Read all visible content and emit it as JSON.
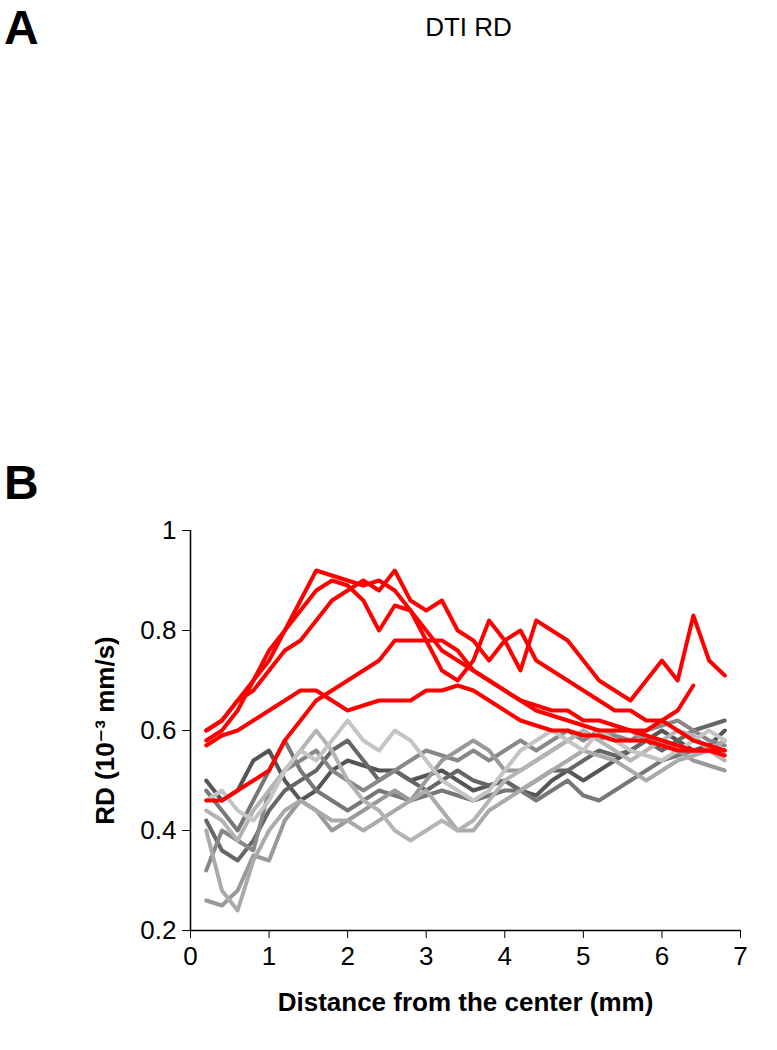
{
  "figure": {
    "panels": [
      {
        "label": "A",
        "title": "DTI RD"
      },
      {
        "label": "B"
      }
    ]
  },
  "chart_data": {
    "type": "line",
    "xlabel": "Distance from the center (mm)",
    "ylabel": "RD (10⁻³ mm/s)",
    "xlim": [
      0,
      7
    ],
    "ylim": [
      0.2,
      1
    ],
    "xticks": [
      0,
      1,
      2,
      3,
      4,
      5,
      6,
      7
    ],
    "yticks": [
      0.2,
      0.4,
      0.6,
      0.8,
      1
    ],
    "x": [
      0.2,
      0.4,
      0.6,
      0.8,
      1.0,
      1.2,
      1.4,
      1.6,
      1.8,
      2.0,
      2.2,
      2.4,
      2.6,
      2.8,
      3.0,
      3.2,
      3.4,
      3.6,
      3.8,
      4.0,
      4.2,
      4.4,
      4.6,
      4.8,
      5.0,
      5.2,
      5.4,
      5.6,
      5.8,
      6.0,
      6.2,
      6.4,
      6.6,
      6.8
    ],
    "series": [
      {
        "color": "#555555",
        "values": [
          0.5,
          0.46,
          0.48,
          0.54,
          0.56,
          0.5,
          0.46,
          0.48,
          0.52,
          0.54,
          0.53,
          0.52,
          0.52,
          0.5,
          0.51,
          0.52,
          0.5,
          0.48,
          0.49,
          0.5,
          0.48,
          0.47,
          0.5,
          0.52,
          0.5,
          0.52,
          0.54,
          0.56,
          0.58,
          0.6,
          0.58,
          0.56,
          0.57,
          0.6
        ]
      },
      {
        "color": "#666666",
        "values": [
          0.42,
          0.36,
          0.34,
          0.38,
          0.44,
          0.48,
          0.5,
          0.52,
          0.56,
          0.58,
          0.54,
          0.5,
          0.52,
          0.5,
          0.48,
          0.5,
          0.52,
          0.5,
          0.49,
          0.5,
          0.48,
          0.5,
          0.52,
          0.52,
          0.54,
          0.56,
          0.55,
          0.56,
          0.58,
          0.56,
          0.58,
          0.6,
          0.61,
          0.62
        ]
      },
      {
        "color": "#777777",
        "values": [
          0.48,
          0.44,
          0.4,
          0.46,
          0.52,
          0.58,
          0.52,
          0.48,
          0.46,
          0.44,
          0.46,
          0.48,
          0.47,
          0.46,
          0.47,
          0.48,
          0.47,
          0.46,
          0.47,
          0.48,
          0.48,
          0.46,
          0.48,
          0.5,
          0.47,
          0.46,
          0.48,
          0.5,
          0.52,
          0.54,
          0.55,
          0.56,
          0.56,
          0.58
        ]
      },
      {
        "color": "#888888",
        "values": [
          0.32,
          0.4,
          0.38,
          0.36,
          0.48,
          0.52,
          0.54,
          0.56,
          0.52,
          0.5,
          0.48,
          0.5,
          0.52,
          0.54,
          0.56,
          0.55,
          0.54,
          0.56,
          0.54,
          0.56,
          0.58,
          0.56,
          0.58,
          0.6,
          0.58,
          0.6,
          0.59,
          0.58,
          0.6,
          0.61,
          0.62,
          0.6,
          0.58,
          0.57
        ]
      },
      {
        "color": "#999999",
        "values": [
          0.26,
          0.25,
          0.28,
          0.35,
          0.34,
          0.42,
          0.46,
          0.44,
          0.4,
          0.42,
          0.44,
          0.46,
          0.48,
          0.46,
          0.5,
          0.54,
          0.56,
          0.58,
          0.56,
          0.52,
          0.52,
          0.54,
          0.56,
          0.58,
          0.6,
          0.58,
          0.6,
          0.6,
          0.58,
          0.58,
          0.56,
          0.54,
          0.53,
          0.52
        ]
      },
      {
        "color": "#aaaaaa",
        "values": [
          0.4,
          0.28,
          0.24,
          0.34,
          0.4,
          0.44,
          0.46,
          0.44,
          0.42,
          0.42,
          0.4,
          0.42,
          0.44,
          0.46,
          0.48,
          0.44,
          0.4,
          0.4,
          0.44,
          0.46,
          0.48,
          0.5,
          0.52,
          0.54,
          0.56,
          0.55,
          0.54,
          0.52,
          0.5,
          0.52,
          0.54,
          0.55,
          0.56,
          0.58
        ]
      },
      {
        "color": "#b4b4b4",
        "values": [
          0.44,
          0.42,
          0.38,
          0.44,
          0.48,
          0.52,
          0.56,
          0.6,
          0.56,
          0.5,
          0.46,
          0.44,
          0.4,
          0.38,
          0.4,
          0.42,
          0.4,
          0.42,
          0.46,
          0.5,
          0.52,
          0.54,
          0.56,
          0.58,
          0.6,
          0.58,
          0.56,
          0.54,
          0.56,
          0.58,
          0.6,
          0.59,
          0.56,
          0.54
        ]
      },
      {
        "color": "#c4c4c4",
        "values": [
          0.46,
          0.48,
          0.44,
          0.42,
          0.46,
          0.52,
          0.56,
          0.54,
          0.58,
          0.62,
          0.58,
          0.56,
          0.6,
          0.58,
          0.54,
          0.5,
          0.48,
          0.46,
          0.48,
          0.52,
          0.56,
          0.58,
          0.6,
          0.58,
          0.56,
          0.6,
          0.58,
          0.56,
          0.55,
          0.54,
          0.56,
          0.58,
          0.6,
          0.58
        ]
      },
      {
        "color": "#ff0000",
        "values": [
          0.6,
          0.62,
          0.66,
          0.7,
          0.76,
          0.8,
          0.86,
          0.92,
          0.91,
          0.9,
          0.89,
          0.9,
          0.88,
          0.84,
          0.8,
          0.76,
          0.74,
          0.72,
          0.7,
          0.68,
          0.66,
          0.64,
          0.63,
          0.62,
          0.61,
          0.6,
          0.6,
          0.6,
          0.59,
          0.58,
          0.57,
          0.56,
          0.56,
          0.56
        ]
      },
      {
        "color": "#ff0000",
        "values": [
          0.58,
          0.6,
          0.64,
          0.7,
          0.74,
          0.8,
          0.84,
          0.88,
          0.9,
          0.89,
          0.86,
          0.8,
          0.85,
          0.84,
          0.78,
          0.72,
          0.7,
          0.74,
          0.82,
          0.78,
          0.8,
          0.74,
          0.72,
          0.7,
          0.68,
          0.66,
          0.64,
          0.64,
          0.62,
          0.62,
          0.6,
          0.58,
          0.57,
          0.56
        ]
      },
      {
        "color": "#ff0000",
        "values": [
          0.6,
          0.62,
          0.66,
          0.68,
          0.72,
          0.76,
          0.78,
          0.82,
          0.86,
          0.88,
          0.9,
          0.88,
          0.92,
          0.86,
          0.84,
          0.86,
          0.8,
          0.78,
          0.74,
          0.78,
          0.72,
          0.82,
          0.8,
          0.78,
          0.74,
          0.7,
          0.68,
          0.66,
          0.7,
          0.74,
          0.7,
          0.83,
          0.74,
          0.71
        ]
      },
      {
        "color": "#ff0000",
        "values": [
          0.46,
          0.46,
          0.48,
          0.5,
          0.52,
          0.58,
          0.62,
          0.66,
          0.68,
          0.7,
          0.72,
          0.74,
          0.78,
          0.78,
          0.78,
          0.78,
          0.76,
          0.72,
          0.7,
          0.68,
          0.66,
          0.65,
          0.64,
          0.64,
          0.62,
          0.62,
          0.61,
          0.6,
          0.6,
          0.62,
          0.64,
          0.69,
          null,
          null
        ]
      },
      {
        "color": "#ff0000",
        "values": [
          0.57,
          0.59,
          0.6,
          0.62,
          0.64,
          0.66,
          0.68,
          0.68,
          0.66,
          0.64,
          0.65,
          0.66,
          0.66,
          0.66,
          0.68,
          0.68,
          0.69,
          0.68,
          0.66,
          0.64,
          0.62,
          0.61,
          0.6,
          0.6,
          0.59,
          0.59,
          0.58,
          0.58,
          0.58,
          0.57,
          0.56,
          0.56,
          0.56,
          0.55
        ]
      }
    ]
  }
}
